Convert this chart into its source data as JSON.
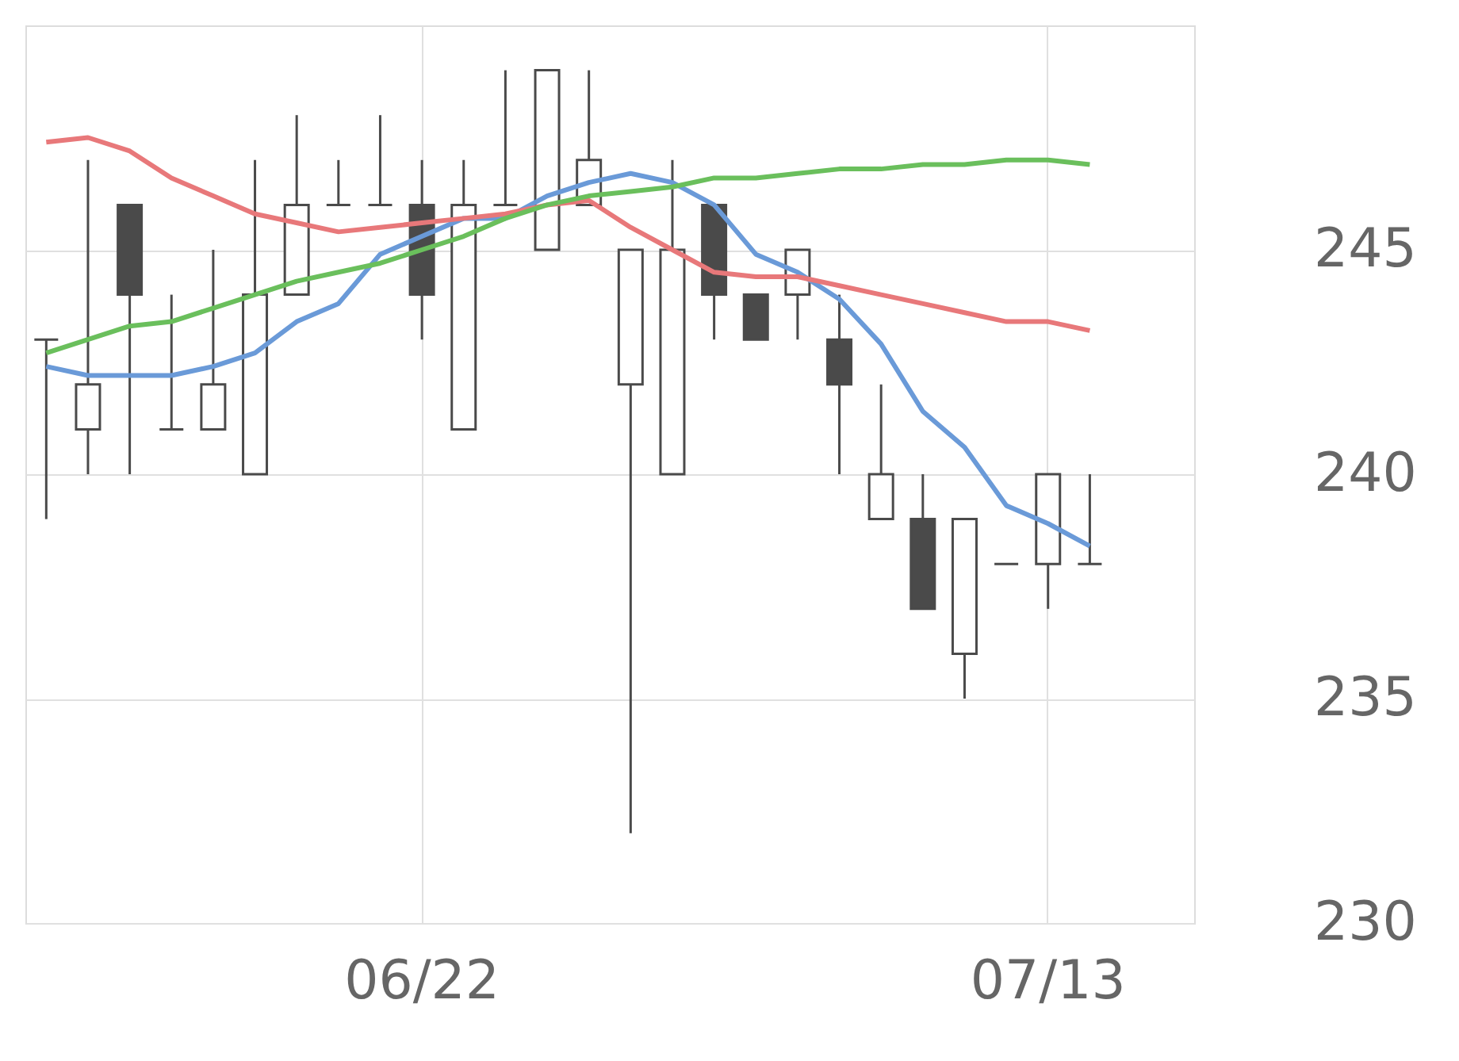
{
  "chart_data": {
    "type": "candlestick",
    "categories": [
      null,
      null,
      null,
      null,
      null,
      null,
      null,
      null,
      null,
      "06/22",
      null,
      null,
      null,
      null,
      null,
      null,
      null,
      null,
      null,
      null,
      null,
      null,
      null,
      null,
      "07/13",
      null,
      null,
      null
    ],
    "ohlc": [
      [
        243,
        243,
        239,
        243
      ],
      [
        241,
        247,
        240,
        242
      ],
      [
        246,
        246,
        240,
        244
      ],
      [
        241,
        244,
        241,
        241
      ],
      [
        241,
        245,
        241,
        242
      ],
      [
        240,
        247,
        240,
        244
      ],
      [
        244,
        248,
        244,
        246
      ],
      [
        246,
        247,
        246,
        246
      ],
      [
        246,
        248,
        246,
        246
      ],
      [
        246,
        247,
        243,
        244
      ],
      [
        241,
        247,
        241,
        246
      ],
      [
        246,
        249,
        246,
        246
      ],
      [
        245,
        249,
        245,
        249
      ],
      [
        246,
        249,
        246,
        247
      ],
      [
        242,
        245,
        232,
        245
      ],
      [
        240,
        247,
        240,
        245
      ],
      [
        246,
        246,
        243,
        244
      ],
      [
        244,
        244,
        243,
        243
      ],
      [
        244,
        245,
        243,
        245
      ],
      [
        243,
        244,
        240,
        242
      ],
      [
        239,
        242,
        239,
        240
      ],
      [
        239,
        240,
        237,
        237
      ],
      [
        236,
        239,
        235,
        239
      ],
      [
        238,
        238,
        238,
        238
      ],
      [
        238,
        240,
        237,
        240
      ],
      [
        238,
        240,
        238,
        238
      ],
      null,
      null
    ],
    "series": [
      {
        "type": "line",
        "color": "#6a9ad8",
        "values": [
          242.4,
          242.2,
          242.2,
          242.2,
          242.4,
          242.7,
          243.4,
          243.8,
          244.9,
          245.3,
          245.7,
          245.7,
          246.2,
          246.5,
          246.7,
          246.5,
          246.0,
          244.9,
          244.5,
          243.9,
          242.9,
          241.4,
          240.6,
          239.3,
          238.9,
          238.4,
          null,
          null
        ]
      },
      {
        "type": "line",
        "color": "#e8787a",
        "values": [
          247.4,
          247.5,
          247.2,
          246.6,
          246.2,
          245.8,
          245.6,
          245.4,
          245.5,
          245.6,
          245.7,
          245.8,
          246.0,
          246.1,
          245.5,
          245.0,
          244.5,
          244.4,
          244.4,
          244.2,
          244.0,
          243.8,
          243.6,
          243.4,
          243.4,
          243.2,
          null,
          null
        ]
      },
      {
        "type": "line",
        "color": "#6abf5c",
        "values": [
          242.7,
          243.0,
          243.3,
          243.4,
          243.7,
          244.0,
          244.3,
          244.5,
          244.7,
          245.0,
          245.3,
          245.7,
          246.0,
          246.2,
          246.3,
          246.4,
          246.6,
          246.6,
          246.7,
          246.8,
          246.8,
          246.9,
          246.9,
          247.0,
          247.0,
          246.9,
          null,
          null
        ]
      }
    ],
    "ylim": [
      230,
      250
    ],
    "yticks": [
      230,
      235,
      240,
      245
    ],
    "grid": true
  }
}
